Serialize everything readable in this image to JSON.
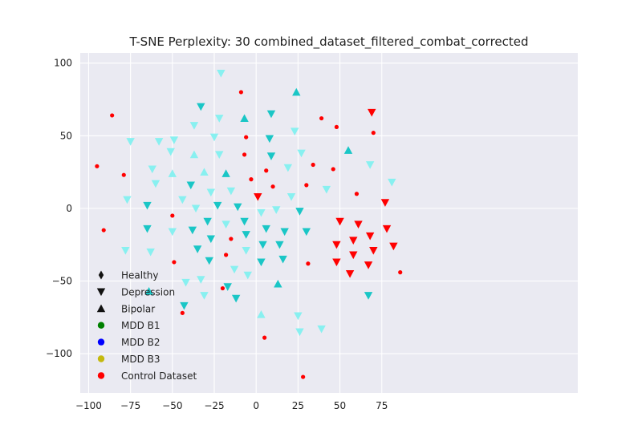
{
  "chart_data": {
    "type": "scatter",
    "title": "T-SNE Perplexity: 30 combined_dataset_filtered_combat_corrected",
    "xlabel": "",
    "ylabel": "",
    "xlim": [
      -105,
      192
    ],
    "ylim": [
      -127,
      107
    ],
    "x_ticks": [
      -100,
      -75,
      -50,
      -25,
      0,
      25,
      50,
      75
    ],
    "x_tick_labels": [
      "−100",
      "−75",
      "−50",
      "−25",
      "0",
      "25",
      "50",
      "75"
    ],
    "y_ticks": [
      -100,
      -50,
      0,
      50,
      100
    ],
    "y_tick_labels": [
      "−100",
      "−50",
      "0",
      "50",
      "100"
    ],
    "grid": true,
    "legend_placement": "bottom-left",
    "colors": {
      "background": "#eaeaf2",
      "grid": "#ffffff",
      "control": "#ff0000",
      "dark_cyan": "#1ac6c6",
      "light_cyan": "#88f0f0",
      "legend_marker": "#111111",
      "mdd_b1": "#008000",
      "mdd_b2": "#0000ff",
      "mdd_b3": "#c4b90e"
    },
    "legend": [
      {
        "label": "Healthy",
        "marker": "diamond",
        "color": "#111111"
      },
      {
        "label": "Depression",
        "marker": "triangle-down",
        "color": "#111111"
      },
      {
        "label": "Bipolar",
        "marker": "triangle-up",
        "color": "#111111"
      },
      {
        "label": "MDD B1",
        "marker": "circle",
        "color": "#008000"
      },
      {
        "label": "MDD B2",
        "marker": "circle",
        "color": "#0000ff"
      },
      {
        "label": "MDD B3",
        "marker": "circle",
        "color": "#c4b90e"
      },
      {
        "label": "Control Dataset",
        "marker": "circle",
        "color": "#ff0000"
      }
    ],
    "series": [
      {
        "group": "red-dots",
        "marker": "dot",
        "color": "#ff0000",
        "points": [
          [
            -95,
            29
          ],
          [
            -91,
            -15
          ],
          [
            -86,
            64
          ],
          [
            -79,
            23
          ],
          [
            -50,
            -5
          ],
          [
            -49,
            -37
          ],
          [
            -44,
            -72
          ],
          [
            -20,
            -55
          ],
          [
            -18,
            -32
          ],
          [
            -15,
            -21
          ],
          [
            -9,
            80
          ],
          [
            -7,
            37
          ],
          [
            -6,
            49
          ],
          [
            -3,
            20
          ],
          [
            5,
            -89
          ],
          [
            10,
            15
          ],
          [
            6,
            26
          ],
          [
            28,
            -116
          ],
          [
            30,
            16
          ],
          [
            31,
            -38
          ],
          [
            34,
            30
          ],
          [
            39,
            62
          ],
          [
            46,
            27
          ],
          [
            48,
            56
          ],
          [
            60,
            10
          ],
          [
            70,
            52
          ],
          [
            86,
            -44
          ]
        ]
      },
      {
        "group": "red-triangle-down",
        "marker": "triangle-down",
        "color": "#ff0000",
        "points": [
          [
            1,
            8
          ],
          [
            50,
            -9
          ],
          [
            48,
            -25
          ],
          [
            48,
            -37
          ],
          [
            56,
            -45
          ],
          [
            58,
            -22
          ],
          [
            58,
            -32
          ],
          [
            61,
            -11
          ],
          [
            67,
            -39
          ],
          [
            68,
            -19
          ],
          [
            69,
            66
          ],
          [
            70,
            -29
          ],
          [
            77,
            4
          ],
          [
            78,
            -14
          ],
          [
            82,
            -26
          ]
        ]
      },
      {
        "group": "dark-cyan-triangle-down",
        "marker": "triangle-down",
        "color": "#1ac6c6",
        "points": [
          [
            -65,
            2
          ],
          [
            -65,
            -14
          ],
          [
            -43,
            -67
          ],
          [
            -39,
            16
          ],
          [
            -38,
            -15
          ],
          [
            -35,
            -28
          ],
          [
            -33,
            70
          ],
          [
            -29,
            -9
          ],
          [
            -28,
            -36
          ],
          [
            -27,
            -21
          ],
          [
            -23,
            2
          ],
          [
            -17,
            -54
          ],
          [
            -12,
            -62
          ],
          [
            -11,
            1
          ],
          [
            -7,
            -9
          ],
          [
            -6,
            -18
          ],
          [
            3,
            -37
          ],
          [
            4,
            -25
          ],
          [
            6,
            -14
          ],
          [
            8,
            48
          ],
          [
            9,
            65
          ],
          [
            9,
            36
          ],
          [
            14,
            -25
          ],
          [
            16,
            -35
          ],
          [
            17,
            -16
          ],
          [
            26,
            -2
          ],
          [
            30,
            -16
          ],
          [
            67,
            -60
          ]
        ]
      },
      {
        "group": "dark-cyan-triangle-up",
        "marker": "triangle-up",
        "color": "#1ac6c6",
        "points": [
          [
            -64,
            -57
          ],
          [
            -7,
            62
          ],
          [
            -18,
            24
          ],
          [
            13,
            -52
          ],
          [
            24,
            80
          ],
          [
            55,
            40
          ]
        ]
      },
      {
        "group": "light-cyan-triangle-down",
        "marker": "triangle-down",
        "color": "#88f0f0",
        "points": [
          [
            -78,
            -29
          ],
          [
            -77,
            6
          ],
          [
            -75,
            46
          ],
          [
            -63,
            -30
          ],
          [
            -62,
            27
          ],
          [
            -60,
            17
          ],
          [
            -58,
            46
          ],
          [
            -51,
            39
          ],
          [
            -50,
            -16
          ],
          [
            -49,
            47
          ],
          [
            -44,
            6
          ],
          [
            -42,
            -51
          ],
          [
            -37,
            57
          ],
          [
            -36,
            0
          ],
          [
            -33,
            -49
          ],
          [
            -31,
            -60
          ],
          [
            -27,
            11
          ],
          [
            -25,
            49
          ],
          [
            -22,
            37
          ],
          [
            -22,
            62
          ],
          [
            -21,
            93
          ],
          [
            -18,
            -11
          ],
          [
            -15,
            12
          ],
          [
            -13,
            -42
          ],
          [
            -6,
            -29
          ],
          [
            -5,
            -46
          ],
          [
            3,
            -3
          ],
          [
            12,
            -1
          ],
          [
            19,
            28
          ],
          [
            21,
            8
          ],
          [
            23,
            53
          ],
          [
            25,
            -74
          ],
          [
            26,
            -85
          ],
          [
            27,
            38
          ],
          [
            39,
            -83
          ],
          [
            42,
            13
          ],
          [
            68,
            30
          ],
          [
            81,
            18
          ]
        ]
      },
      {
        "group": "light-cyan-triangle-up",
        "marker": "triangle-up",
        "color": "#88f0f0",
        "points": [
          [
            -50,
            24
          ],
          [
            -37,
            37
          ],
          [
            -31,
            25
          ],
          [
            3,
            -73
          ]
        ]
      }
    ]
  }
}
